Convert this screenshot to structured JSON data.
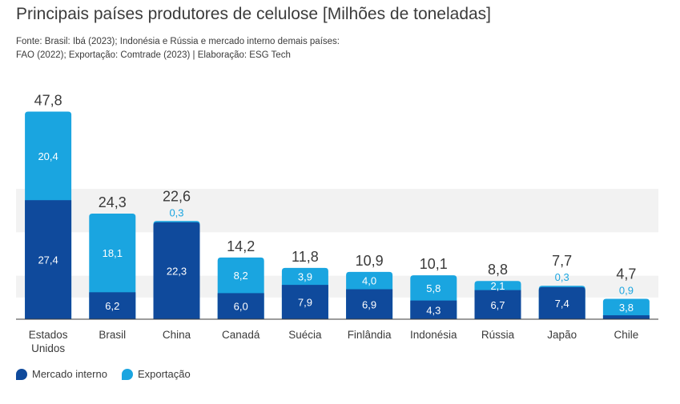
{
  "title": "Principais países produtores de celulose [Milhões de toneladas]",
  "source": {
    "line1": "Fonte: Brasil: Ibá (2023); Indonésia e Rússia e mercado interno demais países:",
    "line2": "FAO (2022); Exportação: Comtrade (2023) | Elaboração: ESG Tech"
  },
  "colors": {
    "mercado_interno": "#0f4a9c",
    "exportacao": "#1aa5e0",
    "band": "#f2f2f2",
    "axis": "#3a3a3a"
  },
  "legend": [
    {
      "label": "Mercado interno",
      "color": "#0f4a9c"
    },
    {
      "label": "Exportação",
      "color": "#1aa5e0"
    }
  ],
  "chart_data": {
    "type": "bar",
    "stacked": true,
    "categories": [
      "Estados Unidos",
      "Brasil",
      "China",
      "Canadá",
      "Suécia",
      "Finlândia",
      "Indonésia",
      "Rússia",
      "Japão",
      "Chile"
    ],
    "series": [
      {
        "name": "Mercado interno",
        "values": [
          27.4,
          6.2,
          22.3,
          6.0,
          7.9,
          6.9,
          4.3,
          6.7,
          7.4,
          0.9
        ]
      },
      {
        "name": "Exportação",
        "values": [
          20.4,
          18.1,
          0.3,
          8.2,
          3.9,
          4.0,
          5.8,
          2.1,
          0.3,
          3.8
        ]
      }
    ],
    "totals": [
      47.8,
      24.3,
      22.6,
      14.2,
      11.8,
      10.9,
      10.1,
      8.8,
      7.7,
      4.7
    ],
    "value_labels": {
      "mercado_interno": [
        "27,4",
        "6,2",
        "22,3",
        "6,0",
        "7,9",
        "6,9",
        "4,3",
        "6,7",
        "7,4",
        ""
      ],
      "exportacao": [
        "20,4",
        "18,1",
        "0,3",
        "8,2",
        "3,9",
        "4,0",
        "5,8",
        "2,1",
        "0,3",
        "0,9"
      ],
      "inside_export_chile": "3,8",
      "totals": [
        "47,8",
        "24,3",
        "22,6",
        "14,2",
        "11,8",
        "10,9",
        "10,1",
        "8,8",
        "7,7",
        "4,7"
      ]
    },
    "ylim": [
      0,
      48
    ],
    "grid": false
  }
}
